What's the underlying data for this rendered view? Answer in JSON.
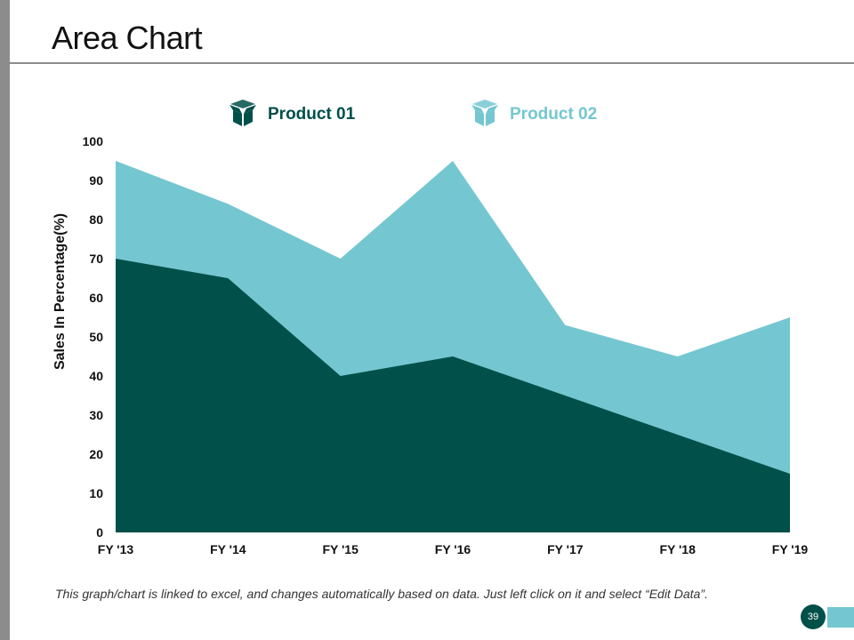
{
  "slide": {
    "title": "Area Chart",
    "footnote": "This graph/chart is linked to excel, and changes automatically based on data. Just left click on it and select “Edit Data”.",
    "page_number": "39"
  },
  "colors": {
    "series1": "#01504a",
    "series2": "#74c7d0",
    "side_bar": "#8c8c8c"
  },
  "icons": {
    "legend": "box-icon"
  },
  "chart_data": {
    "type": "area",
    "title": "",
    "xlabel": "",
    "ylabel": "Sales In Percentage(%)",
    "categories": [
      "FY '13",
      "FY '14",
      "FY '15",
      "FY '16",
      "FY '17",
      "FY '18",
      "FY '19"
    ],
    "series": [
      {
        "name": "Product 01",
        "values": [
          70,
          65,
          40,
          45,
          35,
          25,
          15
        ]
      },
      {
        "name": "Product 02",
        "values": [
          95,
          84,
          70,
          95,
          53,
          45,
          55
        ]
      }
    ],
    "ylim": [
      0,
      100
    ],
    "yticks": [
      0,
      10,
      20,
      30,
      40,
      50,
      60,
      70,
      80,
      90,
      100
    ],
    "legend_position": "top",
    "grid": false
  }
}
